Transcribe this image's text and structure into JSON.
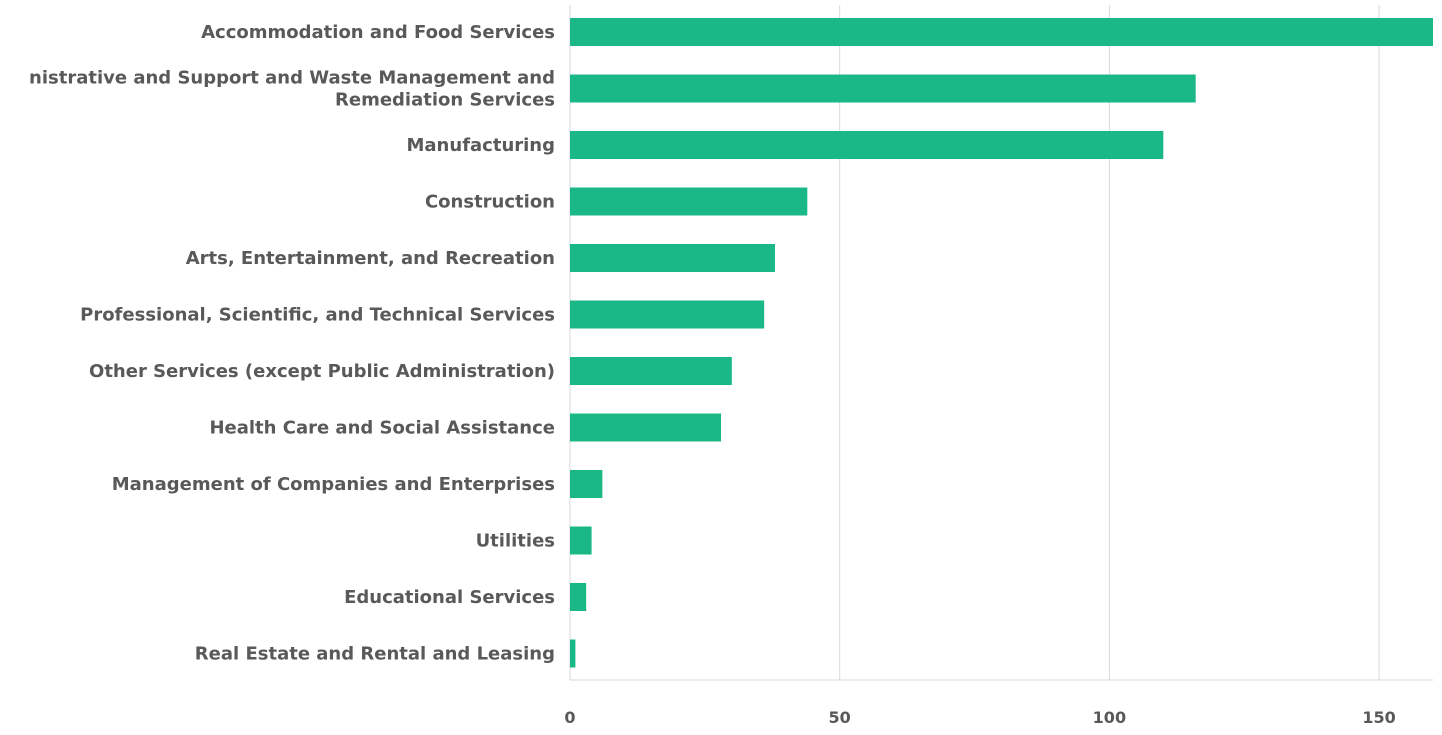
{
  "colors": {
    "bar": "#1ab887",
    "grid": "#d9d9d9",
    "text": "#595959"
  },
  "chart_data": {
    "type": "bar",
    "orientation": "horizontal",
    "categories": [
      [
        "Accommodation and Food Services"
      ],
      [
        "nistrative and Support and Waste Management and",
        "Remediation Services"
      ],
      [
        "Manufacturing"
      ],
      [
        "Construction"
      ],
      [
        "Arts, Entertainment, and Recreation"
      ],
      [
        "Professional, Scientific, and Technical Services"
      ],
      [
        "Other Services (except Public Administration)"
      ],
      [
        "Health Care and Social Assistance"
      ],
      [
        "Management of Companies and Enterprises"
      ],
      [
        "Utilities"
      ],
      [
        "Educational Services"
      ],
      [
        "Real Estate and Rental and Leasing"
      ]
    ],
    "values": [
      160,
      116,
      110,
      44,
      38,
      36,
      30,
      28,
      6,
      4,
      3,
      1
    ],
    "xlim": [
      0,
      160
    ],
    "xticks": [
      0,
      50,
      100,
      150
    ],
    "grid": true,
    "legend": "none"
  }
}
